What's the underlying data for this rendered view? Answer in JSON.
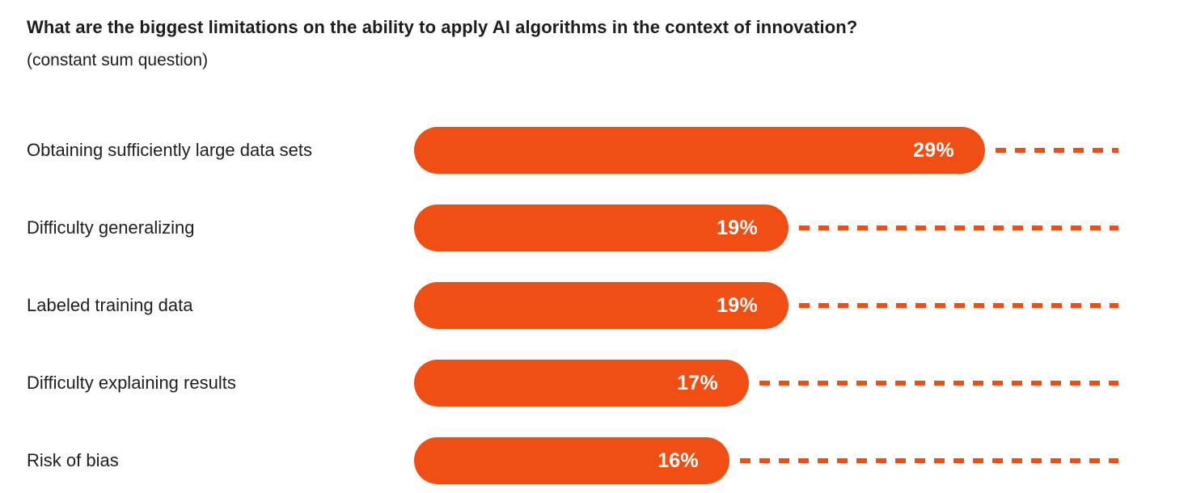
{
  "header": {
    "title": "What are the biggest limitations on the ability to apply AI algorithms in the context of innovation?",
    "subtitle": "(constant sum question)"
  },
  "chart_data": {
    "type": "bar",
    "orientation": "horizontal",
    "title": "What are the biggest limitations on the ability to apply AI algorithms in the context of innovation?",
    "subtitle": "(constant sum question)",
    "categories": [
      "Obtaining sufficiently large data sets",
      "Difficulty generalizing",
      "Labeled training data",
      "Difficulty explaining results",
      "Risk of bias"
    ],
    "values": [
      29,
      19,
      19,
      17,
      16
    ],
    "value_labels": [
      "29%",
      "19%",
      "19%",
      "17%",
      "16%"
    ],
    "unit": "%",
    "xlim": [
      0,
      29
    ],
    "grid": false,
    "legend": false,
    "bar_color": "#F04E12",
    "value_label_color": "#FFFFFF",
    "leader_line_color": "#F04E12",
    "leader_line_style": "dashed",
    "text_color": "#1D1D1F"
  }
}
